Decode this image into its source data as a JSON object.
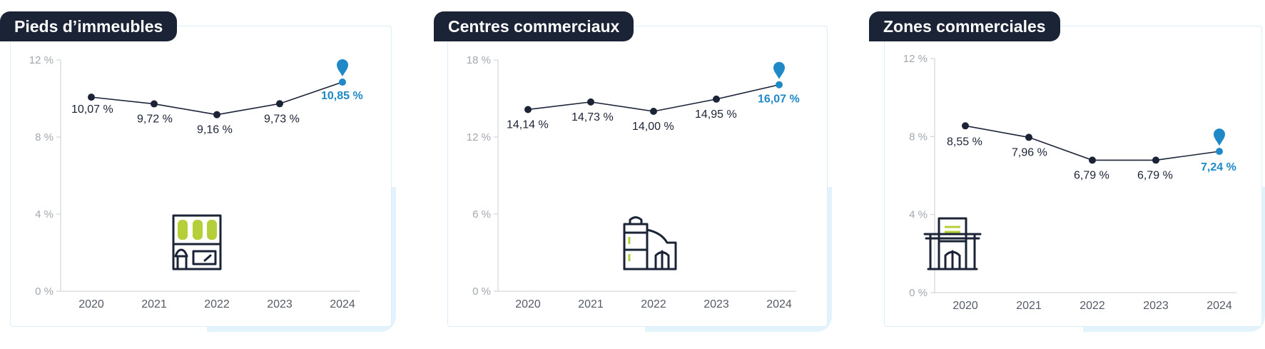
{
  "colors": {
    "title_bg": "#1b2336",
    "line": "#1b2336",
    "highlight": "#1f88c7",
    "icon_accent": "#b5cf3a",
    "card_border": "#dceef9",
    "shadow": "#e3f3fc"
  },
  "chart_data": [
    {
      "type": "line",
      "title": "Pieds d’immeubles",
      "icon": "storefront-icon",
      "x": [
        "2020",
        "2021",
        "2022",
        "2023",
        "2024"
      ],
      "values": [
        10.07,
        9.72,
        9.16,
        9.73,
        10.85
      ],
      "value_labels": [
        "10,07 %",
        "9,72 %",
        "9,16 %",
        "9,73 %",
        "10,85 %"
      ],
      "yticks": [
        "0 %",
        "4 %",
        "8 %",
        "12 %"
      ],
      "ylim": [
        0,
        12
      ],
      "highlight_last": true,
      "grid": false
    },
    {
      "type": "line",
      "title": "Centres commerciaux",
      "icon": "shopping-mall-icon",
      "x": [
        "2020",
        "2021",
        "2022",
        "2023",
        "2024"
      ],
      "values": [
        14.14,
        14.73,
        14.0,
        14.95,
        16.07
      ],
      "value_labels": [
        "14,14 %",
        "14,73 %",
        "14,00 %",
        "14,95 %",
        "16,07 %"
      ],
      "yticks": [
        "0 %",
        "6 %",
        "12 %",
        "18 %"
      ],
      "ylim": [
        0,
        18
      ],
      "highlight_last": true,
      "grid": false
    },
    {
      "type": "line",
      "title": "Zones commerciales",
      "icon": "retail-park-icon",
      "x": [
        "2020",
        "2021",
        "2022",
        "2023",
        "2024"
      ],
      "values": [
        8.55,
        7.96,
        6.79,
        6.79,
        7.24
      ],
      "value_labels": [
        "8,55 %",
        "7,96 %",
        "6,79 %",
        "6,79 %",
        "7,24 %"
      ],
      "yticks": [
        "0 %",
        "4 %",
        "8 %",
        "12 %"
      ],
      "ylim": [
        0,
        12
      ],
      "highlight_last": true,
      "grid": false
    }
  ]
}
